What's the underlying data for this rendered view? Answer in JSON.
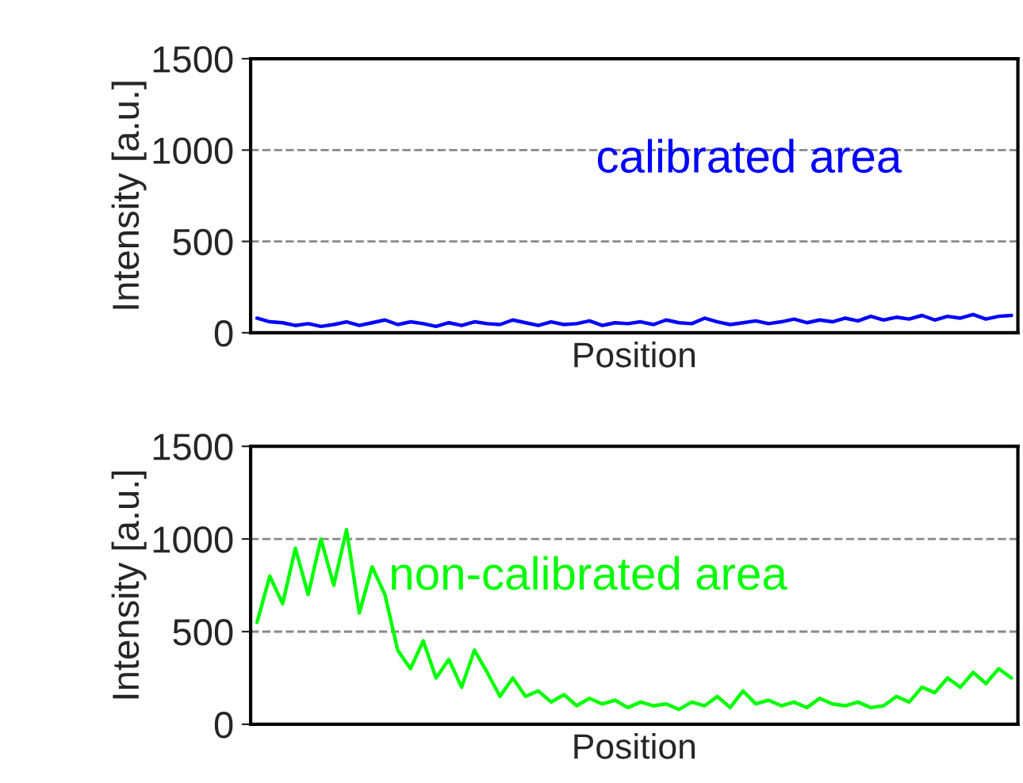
{
  "chart_data": [
    {
      "type": "line",
      "xlabel": "Position",
      "ylabel": "Intensity [a.u.]",
      "ylim": [
        0,
        1500
      ],
      "yticks": [
        0,
        500,
        1000,
        1500
      ],
      "grid": "y",
      "categories": [
        null,
        null,
        null,
        null,
        null,
        null,
        null,
        null,
        null,
        null,
        null,
        null,
        null,
        null,
        null,
        null,
        null,
        null,
        null,
        null,
        null,
        null,
        null,
        null,
        null,
        null,
        null,
        null,
        null,
        null,
        null,
        null,
        null,
        null,
        null,
        null,
        null,
        null,
        null,
        null,
        null,
        null,
        null,
        null,
        null,
        null,
        null,
        null,
        null,
        null,
        null,
        null,
        null,
        null,
        null,
        null,
        null,
        null,
        null,
        null
      ],
      "series": [
        {
          "name": "calibrated area",
          "color": "#0000ff",
          "values": [
            80,
            60,
            55,
            40,
            50,
            35,
            45,
            60,
            40,
            55,
            70,
            45,
            60,
            50,
            35,
            55,
            40,
            60,
            50,
            45,
            70,
            55,
            40,
            60,
            45,
            50,
            65,
            40,
            55,
            50,
            60,
            45,
            70,
            55,
            50,
            80,
            60,
            45,
            55,
            65,
            50,
            60,
            75,
            55,
            70,
            60,
            80,
            65,
            90,
            70,
            85,
            75,
            95,
            70,
            90,
            80,
            100,
            75,
            90,
            95
          ]
        }
      ]
    },
    {
      "type": "line",
      "xlabel": "Position",
      "ylabel": "Intensity [a.u.]",
      "ylim": [
        0,
        1500
      ],
      "yticks": [
        0,
        500,
        1000,
        1500
      ],
      "grid": "y",
      "categories": [
        null,
        null,
        null,
        null,
        null,
        null,
        null,
        null,
        null,
        null,
        null,
        null,
        null,
        null,
        null,
        null,
        null,
        null,
        null,
        null,
        null,
        null,
        null,
        null,
        null,
        null,
        null,
        null,
        null,
        null,
        null,
        null,
        null,
        null,
        null,
        null,
        null,
        null,
        null,
        null,
        null,
        null,
        null,
        null,
        null,
        null,
        null,
        null,
        null,
        null,
        null,
        null,
        null,
        null,
        null,
        null,
        null,
        null,
        null,
        null
      ],
      "series": [
        {
          "name": "non-calibrated area",
          "color": "#00ff00",
          "values": [
            550,
            800,
            650,
            950,
            700,
            1000,
            750,
            1050,
            600,
            850,
            700,
            400,
            300,
            450,
            250,
            350,
            200,
            400,
            280,
            150,
            250,
            150,
            180,
            120,
            160,
            100,
            140,
            110,
            130,
            90,
            120,
            100,
            110,
            80,
            120,
            100,
            150,
            90,
            180,
            110,
            130,
            100,
            120,
            90,
            140,
            110,
            100,
            120,
            90,
            100,
            150,
            120,
            200,
            170,
            250,
            200,
            280,
            220,
            300,
            250
          ]
        }
      ]
    }
  ]
}
